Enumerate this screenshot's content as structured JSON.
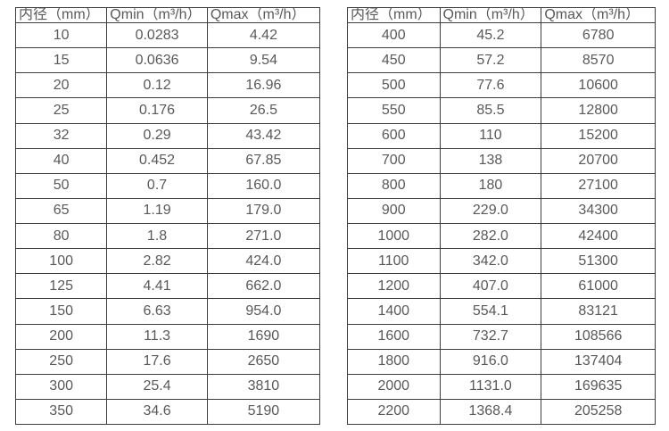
{
  "chart_data": [
    {
      "type": "table",
      "headers": [
        "内径（mm）",
        "Qmin（m³/h）",
        "Qmax（m³/h）"
      ],
      "rows": [
        [
          "10",
          "0.0283",
          "4.42"
        ],
        [
          "15",
          "0.0636",
          "9.54"
        ],
        [
          "20",
          "0.12",
          "16.96"
        ],
        [
          "25",
          "0.176",
          "26.5"
        ],
        [
          "32",
          "0.29",
          "43.42"
        ],
        [
          "40",
          "0.452",
          "67.85"
        ],
        [
          "50",
          "0.7",
          "160.0"
        ],
        [
          "65",
          "1.19",
          "179.0"
        ],
        [
          "80",
          "1.8",
          "271.0"
        ],
        [
          "100",
          "2.82",
          "424.0"
        ],
        [
          "125",
          "4.41",
          "662.0"
        ],
        [
          "150",
          "6.63",
          "954.0"
        ],
        [
          "200",
          "11.3",
          "1690"
        ],
        [
          "250",
          "17.6",
          "2650"
        ],
        [
          "300",
          "25.4",
          "3810"
        ],
        [
          "350",
          "34.6",
          "5190"
        ]
      ]
    },
    {
      "type": "table",
      "headers": [
        "内径（mm）",
        "Qmin（m³/h）",
        "Qmax（m³/h）"
      ],
      "rows": [
        [
          "400",
          "45.2",
          "6780"
        ],
        [
          "450",
          "57.2",
          "8570"
        ],
        [
          "500",
          "77.6",
          "10600"
        ],
        [
          "550",
          "85.5",
          "12800"
        ],
        [
          "600",
          "110",
          "15200"
        ],
        [
          "700",
          "138",
          "20700"
        ],
        [
          "800",
          "180",
          "27100"
        ],
        [
          "900",
          "229.0",
          "34300"
        ],
        [
          "1000",
          "282.0",
          "42400"
        ],
        [
          "1100",
          "342.0",
          "51300"
        ],
        [
          "1200",
          "407.0",
          "61000"
        ],
        [
          "1400",
          "554.1",
          "83121"
        ],
        [
          "1600",
          "732.7",
          "108566"
        ],
        [
          "1800",
          "916.0",
          "137404"
        ],
        [
          "2000",
          "1131.0",
          "169635"
        ],
        [
          "2200",
          "1368.4",
          "205258"
        ]
      ]
    }
  ],
  "colors": {
    "border": "#3e3e3e",
    "text": "#595959",
    "background": "#ffffff"
  }
}
